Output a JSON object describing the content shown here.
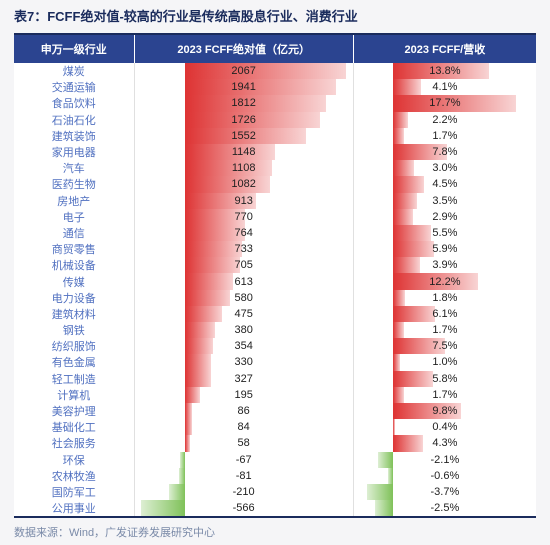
{
  "title": "表7：FCFF绝对值-较高的行业是传统高股息行业、消费行业",
  "source": "数据来源：Wind，广发证券发展研究中心",
  "table": {
    "headers": {
      "col1": "申万一级行业",
      "col2": "2023 FCFF绝对值（亿元）",
      "col3": "2023 FCFF/营收"
    },
    "abs": {
      "min": -600,
      "max": 2100
    },
    "pct": {
      "min": -5,
      "max": 20
    },
    "pos_gradient": "linear-gradient(to right, rgba(220,40,40,0.95), rgba(220,40,40,0.2))",
    "neg_gradient": "linear-gradient(to left, rgba(120,190,80,0.95), rgba(120,190,80,0.25))",
    "rows": [
      {
        "industry": "煤炭",
        "abs": 2067,
        "pct": 13.8
      },
      {
        "industry": "交通运输",
        "abs": 1941,
        "pct": 4.1
      },
      {
        "industry": "食品饮料",
        "abs": 1812,
        "pct": 17.7
      },
      {
        "industry": "石油石化",
        "abs": 1726,
        "pct": 2.2
      },
      {
        "industry": "建筑装饰",
        "abs": 1552,
        "pct": 1.7
      },
      {
        "industry": "家用电器",
        "abs": 1148,
        "pct": 7.8
      },
      {
        "industry": "汽车",
        "abs": 1108,
        "pct": 3.0
      },
      {
        "industry": "医药生物",
        "abs": 1082,
        "pct": 4.5
      },
      {
        "industry": "房地产",
        "abs": 913,
        "pct": 3.5
      },
      {
        "industry": "电子",
        "abs": 770,
        "pct": 2.9
      },
      {
        "industry": "通信",
        "abs": 764,
        "pct": 5.5
      },
      {
        "industry": "商贸零售",
        "abs": 733,
        "pct": 5.9
      },
      {
        "industry": "机械设备",
        "abs": 705,
        "pct": 3.9
      },
      {
        "industry": "传媒",
        "abs": 613,
        "pct": 12.2
      },
      {
        "industry": "电力设备",
        "abs": 580,
        "pct": 1.8
      },
      {
        "industry": "建筑材料",
        "abs": 475,
        "pct": 6.1
      },
      {
        "industry": "钢铁",
        "abs": 380,
        "pct": 1.7
      },
      {
        "industry": "纺织服饰",
        "abs": 354,
        "pct": 7.5
      },
      {
        "industry": "有色金属",
        "abs": 330,
        "pct": 1.0
      },
      {
        "industry": "轻工制造",
        "abs": 327,
        "pct": 5.8
      },
      {
        "industry": "计算机",
        "abs": 195,
        "pct": 1.7
      },
      {
        "industry": "美容护理",
        "abs": 86,
        "pct": 9.8
      },
      {
        "industry": "基础化工",
        "abs": 84,
        "pct": 0.4
      },
      {
        "industry": "社会服务",
        "abs": 58,
        "pct": 4.3
      },
      {
        "industry": "环保",
        "abs": -67,
        "pct": -2.1
      },
      {
        "industry": "农林牧渔",
        "abs": -81,
        "pct": -0.6
      },
      {
        "industry": "国防军工",
        "abs": -210,
        "pct": -3.7
      },
      {
        "industry": "公用事业",
        "abs": -566,
        "pct": -2.5
      }
    ]
  }
}
